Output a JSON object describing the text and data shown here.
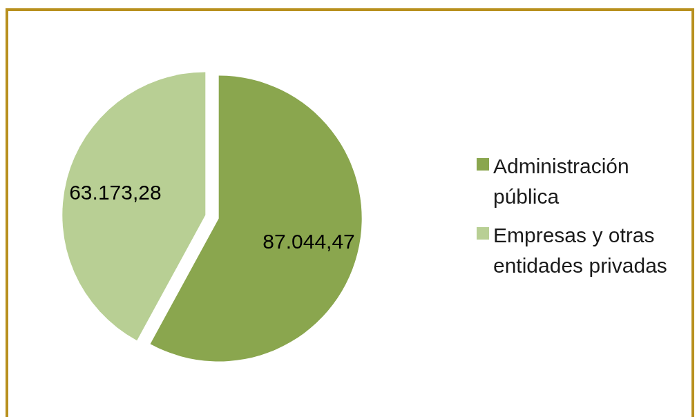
{
  "chart_data": {
    "type": "pie",
    "categories": [
      "Administración pública",
      "Empresas y otras entidades privadas"
    ],
    "values": [
      87044.47,
      63173.28
    ],
    "colors": [
      "#8aa64e",
      "#b8cf94"
    ],
    "value_labels": [
      "87.044,47",
      "63.173,28"
    ],
    "legend": "right"
  }
}
